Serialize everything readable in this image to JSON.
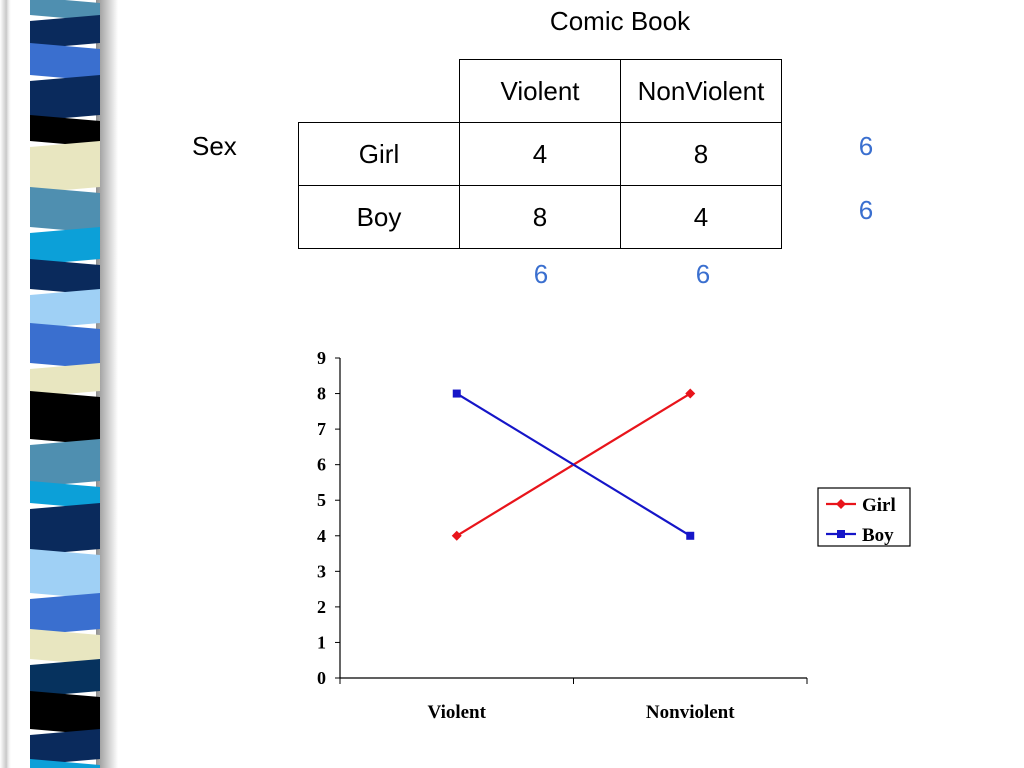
{
  "table": {
    "title": "Comic Book",
    "row_group_label": "Sex",
    "col_headers": [
      "Violent",
      "NonViolent"
    ],
    "rows": [
      {
        "label": "Girl",
        "values": [
          "4",
          "8"
        ],
        "total": "6"
      },
      {
        "label": "Boy",
        "values": [
          "8",
          "4"
        ],
        "total": "6"
      }
    ],
    "col_totals": [
      "6",
      "6"
    ],
    "margin_color": "#3a6fcf"
  },
  "chart_data": {
    "type": "line",
    "categories": [
      "Violent",
      "Nonviolent"
    ],
    "series": [
      {
        "name": "Girl",
        "values": [
          4,
          8
        ],
        "color": "#e8141b",
        "marker": "diamond"
      },
      {
        "name": "Boy",
        "values": [
          8,
          4
        ],
        "color": "#1515c8",
        "marker": "square"
      }
    ],
    "ylim": [
      0,
      9
    ],
    "yticks": [
      0,
      1,
      2,
      3,
      4,
      5,
      6,
      7,
      8,
      9
    ],
    "title": "",
    "xlabel": "",
    "ylabel": "",
    "grid": false,
    "legend": "right"
  },
  "colors": {
    "strip": [
      "#0a2a5c",
      "#4f8fb0",
      "#3a6fcf",
      "#e8e6c0",
      "#000000",
      "#0ca0d8",
      "#9fd0f5",
      "#06325e"
    ]
  }
}
